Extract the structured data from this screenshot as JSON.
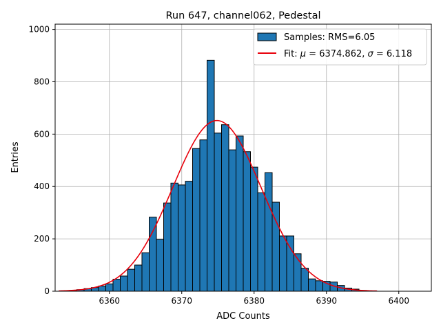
{
  "chart_data": {
    "type": "bar",
    "title": "Run 647, channel062, Pedestal",
    "xlabel": "ADC Counts",
    "ylabel": "Entries",
    "xlim": [
      6352.5,
      6404.5
    ],
    "ylim": [
      0,
      1020
    ],
    "grid": true,
    "legend_position": "top-right",
    "x_ticks": [
      6360,
      6370,
      6380,
      6390,
      6400
    ],
    "y_ticks": [
      0,
      200,
      400,
      600,
      800,
      1000
    ],
    "series": [
      {
        "name": "Samples: RMS=6.05",
        "kind": "histogram",
        "color": "#1f77b4",
        "edge_color": "#000000",
        "bin_width": 1,
        "bin_centers": [
          6355,
          6356,
          6357,
          6358,
          6359,
          6360,
          6361,
          6362,
          6363,
          6364,
          6365,
          6366,
          6367,
          6368,
          6369,
          6370,
          6371,
          6372,
          6373,
          6374,
          6375,
          6376,
          6377,
          6378,
          6379,
          6380,
          6381,
          6382,
          6383,
          6384,
          6385,
          6386,
          6387,
          6388,
          6389,
          6390,
          6391,
          6392,
          6393,
          6394,
          6395
        ],
        "values": [
          3,
          6,
          10,
          14,
          20,
          28,
          46,
          58,
          84,
          100,
          147,
          283,
          198,
          337,
          413,
          406,
          420,
          545,
          578,
          882,
          604,
          636,
          540,
          593,
          533,
          474,
          376,
          453,
          340,
          211,
          211,
          143,
          88,
          47,
          40,
          38,
          35,
          22,
          12,
          8,
          3
        ]
      },
      {
        "name": "Fit: μ = 6374.862, σ = 6.118",
        "legend_prefix": "Fit: ",
        "legend_math": [
          {
            "sym": "μ",
            "rest": " = 6374.862, "
          },
          {
            "sym": "σ",
            "rest": " = 6.118"
          }
        ],
        "kind": "gaussian",
        "color": "#e8000b",
        "mu": 6374.862,
        "sigma": 6.118,
        "amplitude": 652,
        "x_range": [
          6353,
          6397
        ]
      }
    ]
  }
}
